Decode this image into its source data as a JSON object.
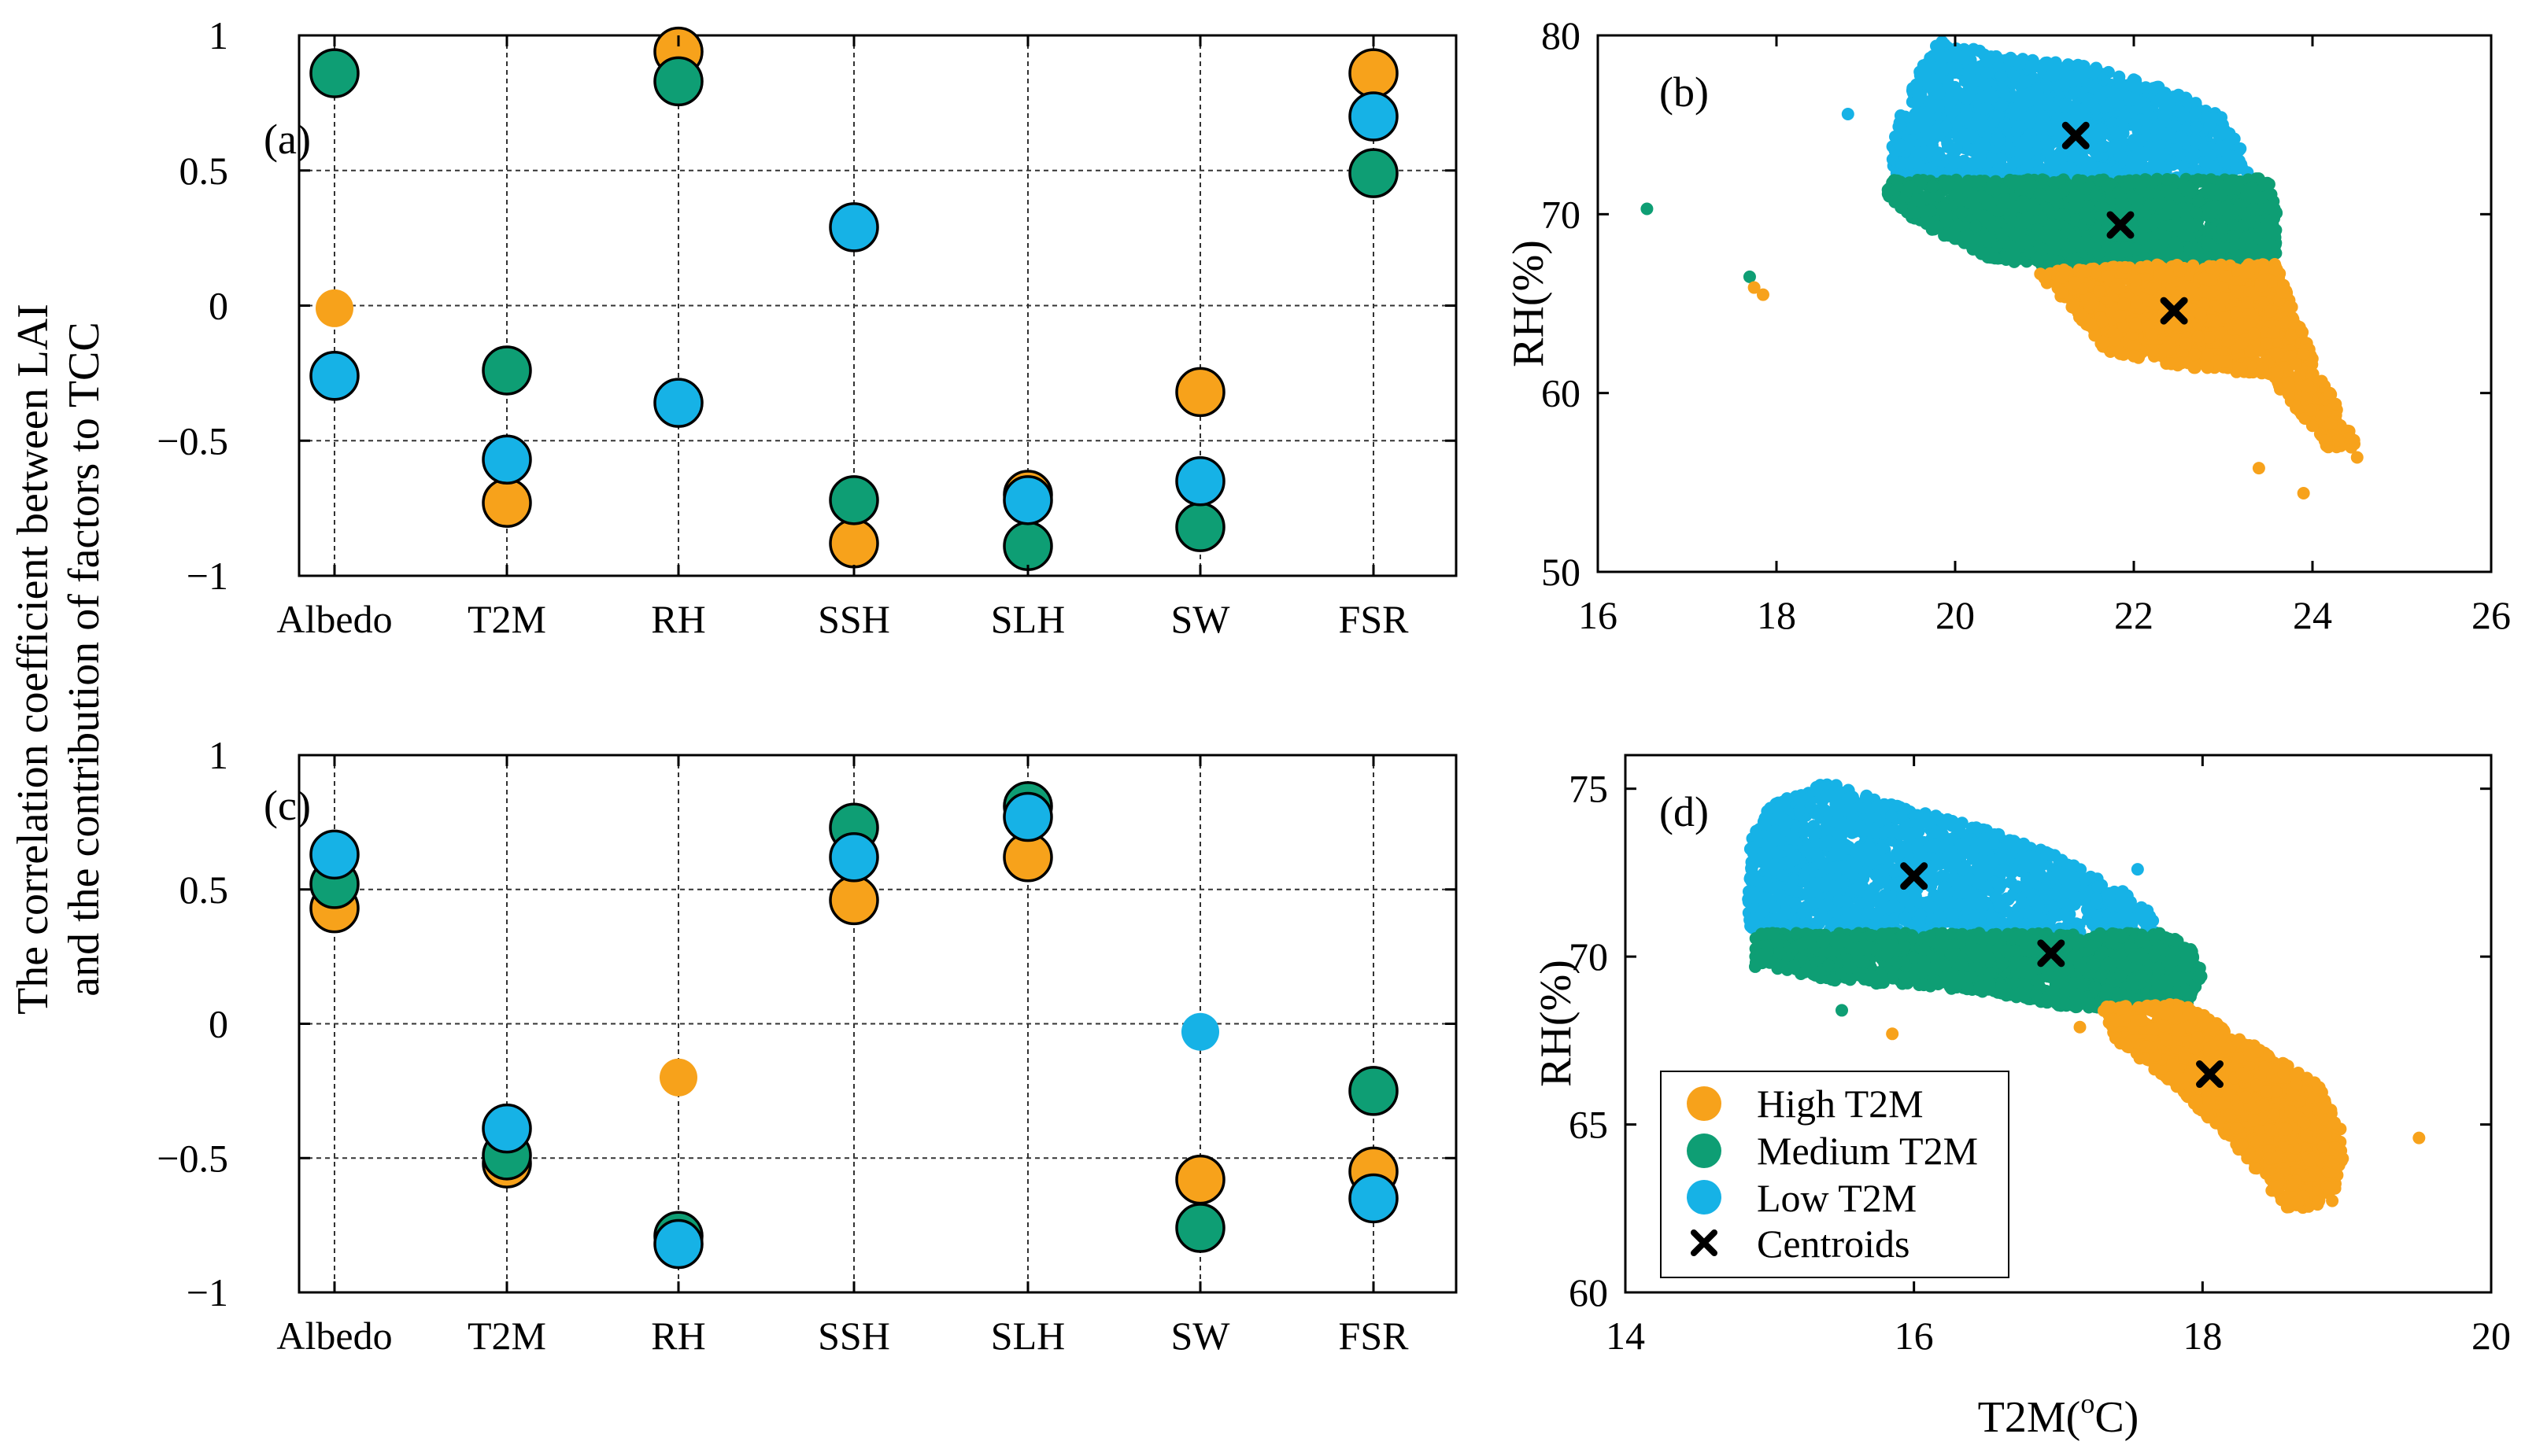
{
  "colors": {
    "high": "#F7A21B",
    "medium": "#0E9E74",
    "low": "#16B2E6",
    "centroid": "#000000"
  },
  "shared_ylabel": [
    "The correlation coefficient between LAI",
    "and the contribution of factors to TCC"
  ],
  "legend": {
    "high": "High T2M",
    "medium": "Medium T2M",
    "low": "Low T2M",
    "centroids": "Centroids"
  },
  "chart_data": [
    {
      "panel": "(a)",
      "type": "scatter",
      "categories": [
        "Albedo",
        "T2M",
        "RH",
        "SSH",
        "SLH",
        "SW",
        "FSR"
      ],
      "ylim": [
        -1,
        1
      ],
      "yticks": [
        -1,
        -0.5,
        0,
        0.5,
        1
      ],
      "ytick_labels": [
        "−1",
        "−0.5",
        "0",
        "0.5",
        "1"
      ],
      "grid": true,
      "series": [
        {
          "name": "High T2M",
          "color_key": "high",
          "values": [
            -0.01,
            -0.73,
            0.94,
            -0.88,
            -0.7,
            -0.32,
            0.86
          ],
          "significant": [
            false,
            true,
            true,
            true,
            true,
            true,
            true
          ]
        },
        {
          "name": "Medium T2M",
          "color_key": "medium",
          "values": [
            0.86,
            -0.24,
            0.83,
            -0.72,
            -0.89,
            -0.82,
            0.49
          ],
          "significant": [
            true,
            true,
            true,
            true,
            true,
            true,
            true
          ]
        },
        {
          "name": "Low T2M",
          "color_key": "low",
          "values": [
            -0.26,
            -0.57,
            -0.36,
            0.29,
            -0.72,
            -0.65,
            0.7
          ],
          "significant": [
            true,
            true,
            true,
            true,
            true,
            true,
            true
          ]
        }
      ]
    },
    {
      "panel": "(b)",
      "type": "scatter",
      "xlim": [
        16,
        26
      ],
      "xticks": [
        16,
        18,
        20,
        22,
        24,
        26
      ],
      "ylim": [
        50,
        80
      ],
      "yticks": [
        50,
        60,
        70,
        80
      ],
      "ylabel": "RH(%)",
      "grid": false,
      "centroids": [
        {
          "name": "Low T2M",
          "x": 21.35,
          "y": 74.4
        },
        {
          "name": "Medium T2M",
          "x": 21.85,
          "y": 69.4
        },
        {
          "name": "High T2M",
          "x": 22.45,
          "y": 64.6
        }
      ],
      "outliers": [
        {
          "color_key": "medium",
          "x": 16.55,
          "y": 70.3
        },
        {
          "color_key": "medium",
          "x": 17.7,
          "y": 66.5
        },
        {
          "color_key": "high",
          "x": 17.75,
          "y": 65.9
        },
        {
          "color_key": "high",
          "x": 17.85,
          "y": 65.5
        },
        {
          "color_key": "low",
          "x": 18.8,
          "y": 75.6
        },
        {
          "color_key": "high",
          "x": 23.4,
          "y": 55.8
        },
        {
          "color_key": "high",
          "x": 23.9,
          "y": 54.4
        },
        {
          "color_key": "high",
          "x": 24.5,
          "y": 56.4
        }
      ]
    },
    {
      "panel": "(c)",
      "type": "scatter",
      "categories": [
        "Albedo",
        "T2M",
        "RH",
        "SSH",
        "SLH",
        "SW",
        "FSR"
      ],
      "ylim": [
        -1,
        1
      ],
      "yticks": [
        -1,
        -0.5,
        0,
        0.5,
        1
      ],
      "ytick_labels": [
        "−1",
        "−0.5",
        "0",
        "0.5",
        "1"
      ],
      "grid": true,
      "series": [
        {
          "name": "High T2M",
          "color_key": "high",
          "values": [
            0.43,
            -0.52,
            -0.2,
            0.46,
            0.62,
            -0.58,
            -0.55
          ],
          "significant": [
            true,
            true,
            false,
            true,
            true,
            true,
            true
          ]
        },
        {
          "name": "Medium T2M",
          "color_key": "medium",
          "values": [
            0.52,
            -0.49,
            -0.79,
            0.73,
            0.81,
            -0.76,
            -0.25
          ],
          "significant": [
            true,
            true,
            true,
            true,
            true,
            true,
            true
          ]
        },
        {
          "name": "Low T2M",
          "color_key": "low",
          "values": [
            0.63,
            -0.39,
            -0.82,
            0.62,
            0.77,
            -0.03,
            -0.65
          ],
          "significant": [
            true,
            true,
            true,
            true,
            true,
            false,
            true
          ]
        }
      ]
    },
    {
      "panel": "(d)",
      "type": "scatter",
      "xlim": [
        14,
        20
      ],
      "xticks": [
        14,
        16,
        18,
        20
      ],
      "ylim": [
        60,
        76
      ],
      "yticks": [
        60,
        65,
        70,
        75
      ],
      "xlabel": "T2M(",
      "xlabel_sup": "o",
      "xlabel_end": "C)",
      "ylabel": "RH(%)",
      "grid": false,
      "centroids": [
        {
          "name": "Low T2M",
          "x": 16.0,
          "y": 72.4
        },
        {
          "name": "Medium T2M",
          "x": 16.95,
          "y": 70.1
        },
        {
          "name": "High T2M",
          "x": 18.05,
          "y": 66.5
        }
      ],
      "outliers": [
        {
          "color_key": "medium",
          "x": 14.9,
          "y": 69.7
        },
        {
          "color_key": "medium",
          "x": 15.5,
          "y": 68.4
        },
        {
          "color_key": "high",
          "x": 15.85,
          "y": 67.7
        },
        {
          "color_key": "high",
          "x": 17.15,
          "y": 67.9
        },
        {
          "color_key": "high",
          "x": 19.5,
          "y": 64.6
        },
        {
          "color_key": "low",
          "x": 17.55,
          "y": 72.6
        }
      ]
    }
  ]
}
